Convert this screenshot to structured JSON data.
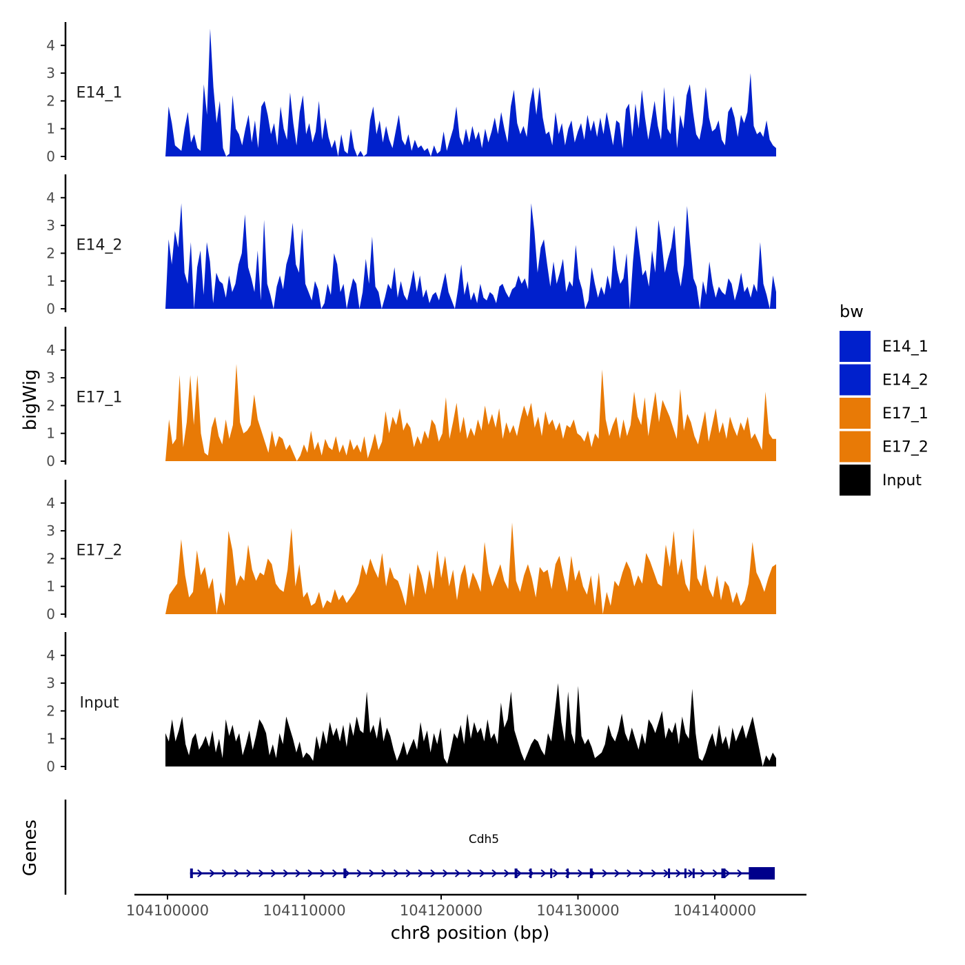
{
  "chart_data": {
    "type": "area",
    "title": "",
    "ylabel": "bigWig",
    "xlabel": "chr8 position (bp)",
    "xlim": [
      104098000,
      104147000
    ],
    "ylim": [
      0,
      4.9
    ],
    "yticks": [
      0,
      1,
      2,
      3,
      4
    ],
    "xticks": [
      104100000,
      104110000,
      104120000,
      104130000,
      104140000
    ],
    "xtick_labels": [
      "104100000",
      "104110000",
      "104120000",
      "104130000",
      "104140000"
    ],
    "legend": {
      "title": "bw",
      "position": "right",
      "entries": [
        {
          "label": "E14_1",
          "color": "#0020cc"
        },
        {
          "label": "E14_2",
          "color": "#0020cc"
        },
        {
          "label": "E17_1",
          "color": "#e87a06"
        },
        {
          "label": "E17_2",
          "color": "#e87a06"
        },
        {
          "label": "Input",
          "color": "#000000"
        }
      ]
    },
    "series": [
      {
        "name": "E14_1",
        "color": "#0020cc",
        "x_start": 104100000,
        "x_end": 104144600,
        "values": [
          0.0,
          1.8,
          1.2,
          0.4,
          0.3,
          0.2,
          1.0,
          1.6,
          0.5,
          0.8,
          0.3,
          0.2,
          2.6,
          1.5,
          4.6,
          2.5,
          1.2,
          2.0,
          0.3,
          0.0,
          0.1,
          2.2,
          1.0,
          0.8,
          0.4,
          1.0,
          1.5,
          0.5,
          1.3,
          0.3,
          1.8,
          2.0,
          1.5,
          0.8,
          1.2,
          0.4,
          1.8,
          1.0,
          0.6,
          2.3,
          1.2,
          0.4,
          1.6,
          2.2,
          0.8,
          1.2,
          0.5,
          0.9,
          2.0,
          0.6,
          1.4,
          0.7,
          0.3,
          0.6,
          0.0,
          0.8,
          0.2,
          0.1,
          1.0,
          0.3,
          0.0,
          0.2,
          0.0,
          0.1,
          1.3,
          1.8,
          0.8,
          1.3,
          0.5,
          1.1,
          0.6,
          0.3,
          0.9,
          1.5,
          0.6,
          0.4,
          0.8,
          0.2,
          0.6,
          0.3,
          0.4,
          0.2,
          0.3,
          0.0,
          0.4,
          0.1,
          0.2,
          0.9,
          0.2,
          0.6,
          1.0,
          1.8,
          0.7,
          0.4,
          1.0,
          0.5,
          1.1,
          0.6,
          0.9,
          0.3,
          1.0,
          0.5,
          0.9,
          1.4,
          0.8,
          1.6,
          1.0,
          0.5,
          1.8,
          2.4,
          1.2,
          0.8,
          1.1,
          0.7,
          1.9,
          2.5,
          1.5,
          2.5,
          1.4,
          0.8,
          0.9,
          0.4,
          1.6,
          0.8,
          1.2,
          0.4,
          1.0,
          1.3,
          0.5,
          0.9,
          1.2,
          0.6,
          1.5,
          0.9,
          1.3,
          0.7,
          1.4,
          0.8,
          1.6,
          1.0,
          0.4,
          1.3,
          1.2,
          0.3,
          1.7,
          1.9,
          0.7,
          1.9,
          1.0,
          2.4,
          1.4,
          0.6,
          1.3,
          2.0,
          1.1,
          0.6,
          2.5,
          1.0,
          0.8,
          2.2,
          0.3,
          1.5,
          1.0,
          2.2,
          2.6,
          1.6,
          0.8,
          0.6,
          1.2,
          2.5,
          1.4,
          0.9,
          1.0,
          1.3,
          0.6,
          0.4,
          1.6,
          1.8,
          1.4,
          0.7,
          1.5,
          1.2,
          1.6,
          3.0,
          1.1,
          0.8,
          0.9,
          0.7,
          1.3,
          0.6,
          0.4,
          0.3
        ]
      },
      {
        "name": "E14_2",
        "color": "#0020cc",
        "x_start": 104100000,
        "x_end": 104144600,
        "values": [
          0.0,
          2.5,
          1.6,
          2.8,
          2.2,
          3.8,
          1.3,
          0.9,
          2.4,
          0.0,
          1.5,
          2.1,
          0.5,
          2.4,
          1.7,
          0.2,
          1.3,
          1.0,
          0.9,
          0.4,
          1.2,
          0.6,
          0.9,
          1.6,
          2.0,
          3.4,
          1.5,
          1.1,
          0.6,
          2.1,
          0.3,
          3.2,
          0.9,
          0.5,
          0.0,
          0.8,
          1.2,
          0.7,
          1.6,
          2.0,
          3.1,
          1.6,
          1.3,
          2.9,
          0.9,
          0.6,
          0.3,
          1.0,
          0.7,
          0.0,
          0.2,
          0.9,
          0.5,
          2.0,
          1.6,
          0.6,
          0.9,
          0.0,
          0.6,
          1.1,
          0.9,
          0.0,
          0.6,
          1.8,
          0.9,
          2.6,
          0.8,
          0.6,
          0.0,
          0.4,
          0.9,
          0.7,
          1.5,
          0.4,
          1.0,
          0.5,
          0.3,
          0.8,
          1.4,
          0.6,
          1.2,
          0.4,
          0.7,
          0.2,
          0.5,
          0.6,
          0.3,
          0.8,
          1.3,
          0.6,
          0.3,
          0.0,
          0.7,
          1.6,
          0.5,
          1.0,
          0.3,
          0.6,
          0.2,
          0.9,
          0.4,
          0.3,
          0.6,
          0.5,
          0.2,
          0.8,
          0.9,
          0.6,
          0.4,
          0.7,
          0.8,
          1.2,
          0.9,
          1.1,
          0.7,
          3.8,
          2.8,
          1.3,
          2.2,
          2.5,
          1.6,
          0.8,
          1.7,
          0.9,
          1.3,
          1.8,
          0.6,
          1.0,
          0.8,
          2.3,
          1.1,
          0.7,
          0.0,
          0.3,
          1.5,
          0.9,
          0.4,
          0.8,
          0.5,
          1.2,
          0.7,
          2.3,
          1.4,
          0.9,
          1.1,
          2.0,
          0.0,
          1.7,
          3.0,
          2.1,
          1.2,
          1.4,
          0.8,
          2.1,
          1.3,
          3.2,
          2.4,
          1.3,
          1.8,
          2.2,
          3.0,
          1.4,
          0.8,
          1.6,
          3.7,
          2.3,
          1.1,
          0.8,
          0.0,
          1.0,
          0.5,
          1.7,
          0.9,
          0.4,
          0.8,
          0.6,
          0.5,
          1.1,
          0.9,
          0.3,
          0.7,
          1.3,
          0.6,
          0.8,
          0.4,
          0.9,
          0.6,
          2.4,
          0.9,
          0.5,
          0.0,
          1.2,
          0.6
        ]
      },
      {
        "name": "E17_1",
        "color": "#e87a06",
        "x_start": 104100000,
        "x_end": 104144600,
        "values": [
          0.0,
          1.5,
          0.6,
          0.8,
          3.1,
          0.5,
          1.4,
          3.1,
          1.3,
          3.1,
          1.0,
          0.3,
          0.2,
          1.2,
          1.6,
          0.9,
          0.6,
          1.5,
          0.8,
          1.3,
          3.5,
          1.4,
          1.0,
          1.1,
          1.3,
          2.4,
          1.5,
          1.1,
          0.7,
          0.3,
          1.1,
          0.5,
          0.9,
          0.8,
          0.4,
          0.6,
          0.3,
          0.0,
          0.2,
          0.6,
          0.3,
          1.1,
          0.4,
          0.7,
          0.2,
          0.8,
          0.5,
          0.4,
          0.9,
          0.3,
          0.6,
          0.2,
          0.8,
          0.4,
          0.6,
          0.3,
          0.9,
          0.1,
          0.5,
          1.0,
          0.4,
          0.7,
          1.8,
          1.0,
          1.6,
          1.3,
          1.9,
          1.1,
          1.4,
          1.2,
          0.5,
          0.9,
          0.6,
          1.1,
          0.8,
          1.5,
          1.3,
          0.7,
          1.0,
          2.3,
          0.8,
          1.4,
          2.1,
          1.0,
          1.6,
          0.8,
          1.2,
          0.9,
          1.5,
          1.1,
          2.0,
          1.3,
          1.7,
          1.2,
          1.9,
          0.8,
          1.4,
          1.0,
          1.3,
          0.9,
          1.5,
          2.0,
          1.6,
          2.1,
          1.2,
          1.6,
          0.9,
          1.8,
          1.3,
          1.5,
          1.1,
          1.4,
          0.8,
          1.3,
          1.2,
          1.5,
          1.0,
          0.9,
          0.7,
          1.1,
          0.5,
          1.0,
          0.8,
          3.3,
          1.5,
          0.9,
          1.3,
          1.6,
          0.8,
          1.5,
          0.9,
          1.3,
          2.5,
          1.6,
          1.3,
          2.3,
          0.9,
          1.7,
          2.5,
          1.4,
          2.2,
          1.9,
          1.6,
          1.2,
          0.8,
          2.6,
          1.1,
          1.7,
          1.4,
          0.9,
          0.6,
          1.2,
          1.8,
          0.7,
          1.3,
          1.9,
          1.0,
          1.4,
          0.8,
          1.6,
          1.2,
          0.9,
          1.4,
          1.1,
          1.6,
          0.8,
          1.0,
          0.7,
          0.4,
          2.5,
          1.0,
          0.8,
          0.8
        ]
      },
      {
        "name": "E17_2",
        "color": "#e87a06",
        "x_start": 104100000,
        "x_end": 104144600,
        "values": [
          0.0,
          0.7,
          0.9,
          1.1,
          2.7,
          1.4,
          0.6,
          0.8,
          2.3,
          1.4,
          1.7,
          0.9,
          1.3,
          0.0,
          0.8,
          0.3,
          3.0,
          2.3,
          1.0,
          1.4,
          1.2,
          2.5,
          1.6,
          1.2,
          1.5,
          1.4,
          2.0,
          1.8,
          1.1,
          0.9,
          0.8,
          1.6,
          3.1,
          1.0,
          1.8,
          0.6,
          0.8,
          0.3,
          0.4,
          0.8,
          0.2,
          0.5,
          0.4,
          0.9,
          0.5,
          0.7,
          0.4,
          0.6,
          0.8,
          1.1,
          1.8,
          1.4,
          2.0,
          1.6,
          1.3,
          2.2,
          1.0,
          1.7,
          1.3,
          1.2,
          0.8,
          0.3,
          1.5,
          0.6,
          1.8,
          1.4,
          0.7,
          1.6,
          0.9,
          2.3,
          1.3,
          2.1,
          1.0,
          1.6,
          0.5,
          1.4,
          1.8,
          0.9,
          1.5,
          1.2,
          0.8,
          2.6,
          1.5,
          1.0,
          1.4,
          1.8,
          1.2,
          0.9,
          3.3,
          1.2,
          0.8,
          1.4,
          1.8,
          1.3,
          0.6,
          1.7,
          1.5,
          1.6,
          0.9,
          1.8,
          2.1,
          1.4,
          0.8,
          2.1,
          1.2,
          1.6,
          1.0,
          0.7,
          1.4,
          0.3,
          1.5,
          0.0,
          0.8,
          0.3,
          1.2,
          1.0,
          1.5,
          1.9,
          1.6,
          1.0,
          1.4,
          1.1,
          2.2,
          1.9,
          1.5,
          1.1,
          1.0,
          2.5,
          1.7,
          3.0,
          1.4,
          2.0,
          1.1,
          0.8,
          3.1,
          1.3,
          1.0,
          1.8,
          0.9,
          0.6,
          1.4,
          0.5,
          1.2,
          1.0,
          0.4,
          0.8,
          0.3,
          0.5,
          1.1,
          2.6,
          1.5,
          1.2,
          0.8,
          1.3,
          1.7,
          1.8
        ]
      },
      {
        "name": "Input",
        "color": "#000000",
        "x_start": 104100000,
        "x_end": 104144600,
        "values": [
          1.2,
          0.9,
          1.7,
          0.9,
          1.3,
          1.8,
          0.8,
          0.4,
          1.0,
          1.2,
          0.6,
          0.8,
          1.1,
          0.7,
          1.3,
          0.5,
          1.0,
          0.3,
          1.7,
          1.1,
          1.5,
          0.9,
          1.2,
          0.4,
          0.8,
          1.3,
          0.6,
          1.1,
          1.7,
          1.5,
          1.2,
          0.4,
          0.8,
          0.3,
          1.2,
          0.8,
          1.8,
          1.4,
          1.0,
          0.5,
          0.9,
          0.3,
          0.5,
          0.4,
          0.2,
          1.1,
          0.6,
          1.3,
          0.8,
          1.6,
          1.1,
          1.4,
          0.9,
          1.5,
          0.7,
          1.6,
          1.1,
          1.8,
          1.3,
          1.2,
          2.7,
          1.2,
          1.5,
          1.0,
          1.8,
          0.9,
          1.4,
          1.1,
          0.6,
          0.2,
          0.5,
          0.9,
          0.4,
          0.7,
          1.0,
          0.6,
          1.6,
          0.9,
          1.3,
          0.5,
          1.2,
          0.8,
          1.4,
          0.3,
          0.1,
          0.6,
          1.2,
          1.0,
          1.5,
          0.8,
          1.9,
          1.0,
          1.6,
          1.2,
          1.4,
          0.9,
          1.7,
          1.0,
          1.2,
          0.8,
          2.3,
          1.4,
          1.7,
          2.7,
          1.3,
          0.9,
          0.5,
          0.2,
          0.5,
          0.8,
          1.0,
          0.9,
          0.6,
          0.4,
          1.2,
          0.9,
          1.9,
          3.0,
          1.6,
          0.9,
          2.7,
          1.2,
          0.8,
          2.9,
          1.1,
          0.8,
          1.0,
          0.7,
          0.3,
          0.4,
          0.5,
          0.8,
          1.5,
          1.1,
          0.9,
          1.3,
          1.9,
          1.2,
          0.9,
          1.4,
          1.0,
          0.6,
          1.2,
          0.8,
          1.7,
          1.5,
          1.2,
          1.6,
          2.0,
          1.0,
          1.4,
          1.2,
          1.6,
          0.8,
          1.8,
          1.2,
          1.0,
          2.8,
          1.2,
          0.3,
          0.2,
          0.5,
          0.9,
          1.2,
          0.7,
          1.5,
          0.8,
          1.1,
          0.6,
          1.4,
          0.9,
          1.2,
          1.5,
          1.0,
          1.4,
          1.8,
          1.2,
          0.6,
          0.0,
          0.4,
          0.2,
          0.5,
          0.3
        ]
      }
    ],
    "gene_track": {
      "label": "Genes",
      "gene_name": "Cdh5",
      "color": "#00008b",
      "start": 104101800,
      "end": 104144500,
      "strand": "+",
      "exons": [
        {
          "start": 104101800,
          "end": 104102000
        },
        {
          "start": 104113000,
          "end": 104113200
        },
        {
          "start": 104125500,
          "end": 104125700
        },
        {
          "start": 104126600,
          "end": 104126750
        },
        {
          "start": 104128100,
          "end": 104128250
        },
        {
          "start": 104129300,
          "end": 104129450
        },
        {
          "start": 104131000,
          "end": 104131200
        },
        {
          "start": 104136700,
          "end": 104136850
        },
        {
          "start": 104137900,
          "end": 104138000
        },
        {
          "start": 104138500,
          "end": 104138600
        },
        {
          "start": 104140600,
          "end": 104140900
        },
        {
          "start": 104142600,
          "end": 104144500
        }
      ]
    }
  }
}
